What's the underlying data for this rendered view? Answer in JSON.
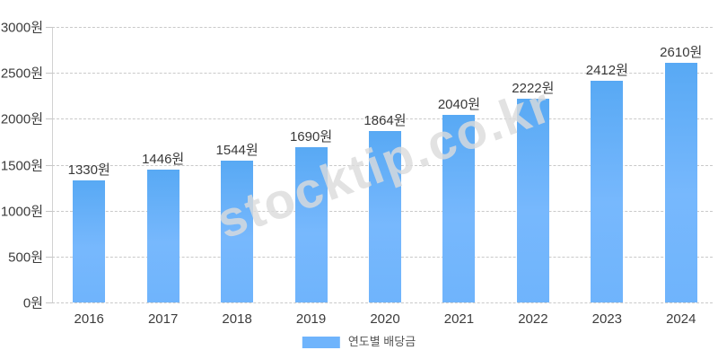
{
  "watermark": {
    "text": "stocktip.co.kr"
  },
  "legend": {
    "label": "연도별 배당금",
    "swatch_color": "#6fb4fc"
  },
  "colors": {
    "bar": "#6fb4fc",
    "bar_top": "#58a9f4",
    "grid": "#c9c9c9",
    "axis": "#d2d2d2",
    "label_text": "#3c3c3c",
    "watermark": "#dcdcdc"
  },
  "chart_data": {
    "type": "bar",
    "title": "",
    "xlabel": "",
    "ylabel": "",
    "unit": "원",
    "categories": [
      "2016",
      "2017",
      "2018",
      "2019",
      "2020",
      "2021",
      "2022",
      "2023",
      "2024"
    ],
    "values": [
      1330,
      1446,
      1544,
      1690,
      1864,
      2040,
      2222,
      2412,
      2610
    ],
    "value_labels": [
      "1330원",
      "1446원",
      "1544원",
      "1690원",
      "1864원",
      "2040원",
      "2222원",
      "2412원",
      "2610원"
    ],
    "series_name": "연도별 배당금",
    "ylim": [
      0,
      3000
    ],
    "y_ticks": [
      0,
      500,
      1000,
      1500,
      2000,
      2500,
      3000
    ],
    "y_tick_labels": [
      "0원",
      "500원",
      "1000원",
      "1500원",
      "2000원",
      "2500원",
      "3000원"
    ],
    "grid": true,
    "grid_style": "dashed",
    "legend_position": "bottom-center"
  }
}
